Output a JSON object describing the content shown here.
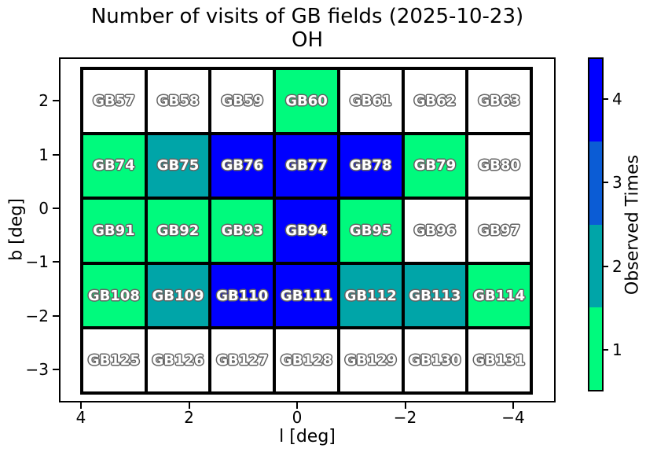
{
  "figure": {
    "title_line1": "Number of visits of GB fields (2025-10-23)",
    "title_line2": "OH"
  },
  "chart_data": {
    "type": "heatmap",
    "title": "Number of visits of GB fields (2025-10-23)",
    "subtitle": "OH",
    "xlabel": "l [deg]",
    "ylabel": "b [deg]",
    "x_ticks": [
      4,
      2,
      0,
      -2,
      -4
    ],
    "y_ticks": [
      2,
      1,
      0,
      -1,
      -2,
      -3
    ],
    "x_axis_reversed": true,
    "grid_shape": "5 rows x 7 cols",
    "legend_position": "right colorbar",
    "value_colors": {
      "0": "#ffffff",
      "1": "#00fa7d",
      "2": "#00a5a8",
      "3": "#0b5cd5",
      "4": "#0000ff"
    },
    "colorbar": {
      "label": "Observed Times",
      "segments": [
        {
          "value": 4,
          "color": "#0000ff"
        },
        {
          "value": 3,
          "color": "#0b5cd5"
        },
        {
          "value": 2,
          "color": "#00a5a8"
        },
        {
          "value": 1,
          "color": "#00fa7d"
        }
      ]
    },
    "rows": [
      [
        {
          "label": "GB57",
          "visits": 0
        },
        {
          "label": "GB58",
          "visits": 0
        },
        {
          "label": "GB59",
          "visits": 0
        },
        {
          "label": "GB60",
          "visits": 1
        },
        {
          "label": "GB61",
          "visits": 0
        },
        {
          "label": "GB62",
          "visits": 0
        },
        {
          "label": "GB63",
          "visits": 0
        }
      ],
      [
        {
          "label": "GB74",
          "visits": 1
        },
        {
          "label": "GB75",
          "visits": 2
        },
        {
          "label": "GB76",
          "visits": 4
        },
        {
          "label": "GB77",
          "visits": 4
        },
        {
          "label": "GB78",
          "visits": 4
        },
        {
          "label": "GB79",
          "visits": 1
        },
        {
          "label": "GB80",
          "visits": 0
        }
      ],
      [
        {
          "label": "GB91",
          "visits": 1
        },
        {
          "label": "GB92",
          "visits": 1
        },
        {
          "label": "GB93",
          "visits": 1
        },
        {
          "label": "GB94",
          "visits": 4
        },
        {
          "label": "GB95",
          "visits": 1
        },
        {
          "label": "GB96",
          "visits": 0
        },
        {
          "label": "GB97",
          "visits": 0
        }
      ],
      [
        {
          "label": "GB108",
          "visits": 1
        },
        {
          "label": "GB109",
          "visits": 2
        },
        {
          "label": "GB110",
          "visits": 4
        },
        {
          "label": "GB111",
          "visits": 4
        },
        {
          "label": "GB112",
          "visits": 2
        },
        {
          "label": "GB113",
          "visits": 2
        },
        {
          "label": "GB114",
          "visits": 1
        }
      ],
      [
        {
          "label": "GB125",
          "visits": 0
        },
        {
          "label": "GB126",
          "visits": 0
        },
        {
          "label": "GB127",
          "visits": 0
        },
        {
          "label": "GB128",
          "visits": 0
        },
        {
          "label": "GB129",
          "visits": 0
        },
        {
          "label": "GB130",
          "visits": 0
        },
        {
          "label": "GB131",
          "visits": 0
        }
      ]
    ]
  }
}
